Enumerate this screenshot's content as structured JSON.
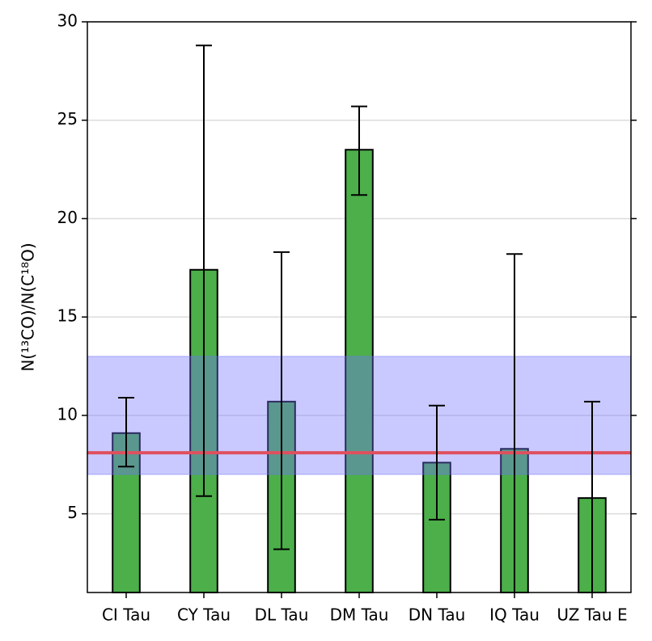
{
  "chart_data": {
    "type": "bar",
    "ylabel": "N(¹³CO)/N(C¹⁸O)",
    "categories": [
      "CI Tau",
      "CY Tau",
      "DL Tau",
      "DM Tau",
      "DN Tau",
      "IQ Tau",
      "UZ Tau E"
    ],
    "values": [
      9.1,
      17.4,
      10.7,
      23.5,
      7.6,
      8.3,
      5.8
    ],
    "err_minus": [
      1.7,
      11.5,
      7.5,
      2.3,
      2.9,
      8.3,
      5.8
    ],
    "err_plus": [
      1.8,
      11.4,
      7.6,
      2.2,
      2.9,
      9.9,
      4.9
    ],
    "color": "#4caf4a",
    "reference_line": 8.1,
    "reference_color": "#e0505e",
    "band": [
      7.0,
      13.0
    ],
    "band_color": "#7070ff",
    "ylim": [
      1,
      30
    ],
    "yticks": [
      5,
      10,
      15,
      20,
      25,
      30
    ],
    "grid": true
  }
}
